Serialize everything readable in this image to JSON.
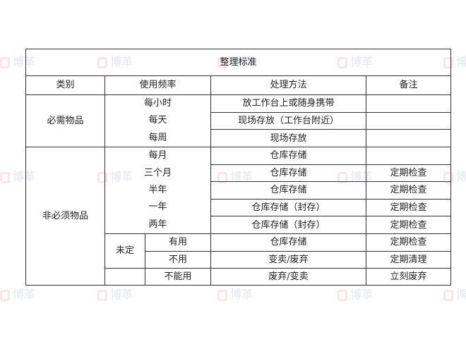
{
  "watermark": "博革",
  "table": {
    "title": "整理标准",
    "headers": [
      "类别",
      "使用频率",
      "处理方法",
      "备注"
    ],
    "necessary": {
      "category": "必需物品",
      "frequencies": [
        "每小时",
        "每天",
        "每周"
      ],
      "rows": [
        {
          "method": "放工作台上或随身携带",
          "note": ""
        },
        {
          "method": "现场存放（工作台附近）",
          "note": ""
        },
        {
          "method": "现场存放",
          "note": ""
        }
      ]
    },
    "unnecessary": {
      "category": "非必须物品",
      "frequencies": [
        "每月",
        "三个月",
        "半年",
        "一年",
        "两年"
      ],
      "rows": [
        {
          "method": "仓库存储",
          "note": ""
        },
        {
          "method": "仓库存储",
          "note": "定期检查"
        },
        {
          "method": "仓库存储",
          "note": "定期检查"
        },
        {
          "method": "仓库存储（封存）",
          "note": "定期检查"
        },
        {
          "method": "仓库存储（封存）",
          "note": "定期检查"
        }
      ],
      "undetermined": {
        "label": "未定",
        "rows": [
          {
            "status": "有用",
            "method": "仓库存储",
            "note": "定期检查"
          },
          {
            "status": "不用",
            "method": "变卖/废弃",
            "note": "定期清理"
          }
        ]
      },
      "unusable": {
        "status": "不能用",
        "method": "废弃/变卖",
        "note": "立刻废弃"
      }
    }
  }
}
